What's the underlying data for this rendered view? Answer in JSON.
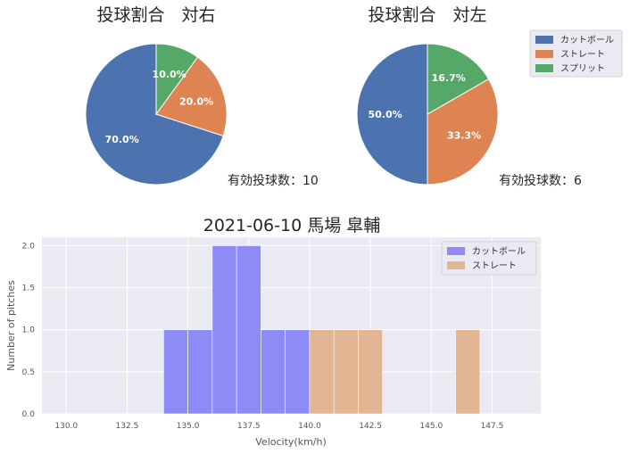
{
  "colors": {
    "cutter": "#4c72b0",
    "straight": "#dd8452",
    "split": "#55a868",
    "hist_cutter": "#8d8cf7",
    "hist_straight": "#e2b593",
    "plot_bg": "#eaeaf2"
  },
  "chart_data": [
    {
      "type": "pie",
      "title": "投球割合　対右",
      "labels": [
        "カットボール",
        "ストレート",
        "スプリット"
      ],
      "values": [
        70.0,
        20.0,
        10.0
      ],
      "value_labels": [
        "70.0%",
        "20.0%",
        "10.0%"
      ],
      "note": "有効投球数：10"
    },
    {
      "type": "pie",
      "title": "投球割合　対左",
      "labels": [
        "カットボール",
        "ストレート",
        "スプリット"
      ],
      "values": [
        50.0,
        33.3,
        16.7
      ],
      "value_labels": [
        "50.0%",
        "33.3%",
        "16.7%"
      ],
      "note": "有効投球数：6",
      "legend": [
        "カットボール",
        "ストレート",
        "スプリット"
      ],
      "legend_position": "right"
    },
    {
      "type": "bar",
      "title": "2021-06-10 馬場 皐輔",
      "xlabel": "Velocity(km/h)",
      "ylabel": "Number of pitches",
      "xlim": [
        129,
        149.5
      ],
      "ylim": [
        0,
        2.1
      ],
      "xticks": [
        "130.0",
        "132.5",
        "135.0",
        "137.5",
        "140.0",
        "142.5",
        "145.0",
        "147.5"
      ],
      "yticks": [
        "0.0",
        "0.5",
        "1.0",
        "1.5",
        "2.0"
      ],
      "legend": [
        "カットボール",
        "ストレート"
      ],
      "legend_position": "top-right",
      "grid": true,
      "series": [
        {
          "name": "カットボール",
          "bins": [
            [
              134,
              135,
              1
            ],
            [
              135,
              136,
              1
            ],
            [
              136,
              137,
              2
            ],
            [
              137,
              138,
              2
            ],
            [
              138,
              139,
              1
            ],
            [
              139,
              140,
              1
            ]
          ]
        },
        {
          "name": "ストレート",
          "bins": [
            [
              140,
              141,
              1
            ],
            [
              141,
              142,
              1
            ],
            [
              142,
              143,
              1
            ],
            [
              146,
              147,
              1
            ]
          ]
        }
      ]
    }
  ]
}
